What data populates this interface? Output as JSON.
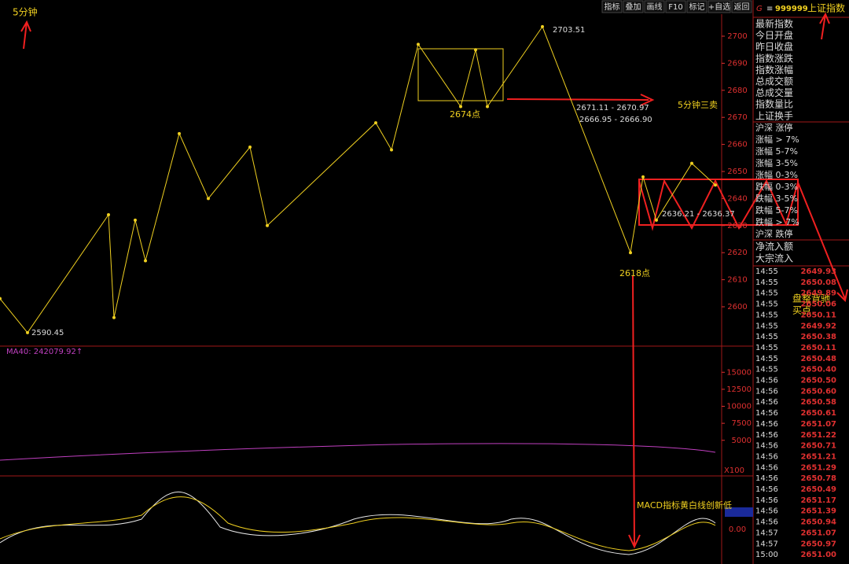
{
  "toolbar": [
    "指标",
    "叠加",
    "画线",
    "F10",
    "标记",
    "+自选",
    "返回"
  ],
  "header": {
    "code": "999999",
    "name": "上证指数",
    "menu": "G",
    "icon": "≡"
  },
  "price_axis": {
    "ylim": [
      2585,
      2713
    ],
    "yticks": [
      2600,
      2610,
      2620,
      2630,
      2640,
      2650,
      2660,
      2670,
      2680,
      2690,
      2700
    ]
  },
  "zigzag": {
    "x": [
      0,
      35,
      138,
      145,
      172,
      185,
      228,
      265,
      318,
      340,
      478,
      498,
      532,
      586,
      605,
      620,
      690,
      802,
      818,
      835,
      880,
      910
    ],
    "values": [
      2603,
      2590.45,
      2634,
      2596,
      2632,
      2617,
      2664,
      2640,
      2659,
      2630,
      2668,
      2658,
      2697,
      2674,
      2695,
      2674,
      2703.51,
      2620,
      2648,
      2632,
      2653,
      2645
    ]
  },
  "annotations": {
    "period": "5分钟",
    "high": "2703.51",
    "low": "2590.45",
    "p2674": "2674点",
    "p2618": "2618点",
    "sell": "5分钟三卖",
    "range1": "2671.11 - 2670.97",
    "range2": "2666.95 - 2666.90",
    "range3": "2636.21 - 2636.37",
    "macd_note": "MACD指标黄白线创新低",
    "buy1": "盘整背驰",
    "buy2": "买点"
  },
  "volume": {
    "ma": "MA40: 242079.92↑",
    "unit": "X100",
    "ylim": [
      0,
      18500
    ],
    "yticks": [
      5000,
      7500,
      10000,
      12500,
      15000
    ]
  },
  "macd": {
    "zero": "0.00"
  },
  "side_labels": [
    "最新指数",
    "今日开盘",
    "昨日收盘",
    "指数涨跌",
    "指数涨幅",
    "总成交额",
    "总成交量",
    "指数量比",
    "上证换手"
  ],
  "breadth_labels": [
    "沪深 涨停",
    "涨幅 > 7%",
    "涨幅 5-7%",
    "涨幅 3-5%",
    "涨幅 0-3%",
    "跌幅 0-3%",
    "跌幅 3-5%",
    "跌幅 5-7%",
    "跌幅 > 7%",
    "沪深 跌停"
  ],
  "flow_labels": [
    "净流入额",
    "大宗流入"
  ],
  "ticks_list": {
    "times": [
      "14:55",
      "14:55",
      "14:55",
      "14:55",
      "14:55",
      "14:55",
      "14:55",
      "14:55",
      "14:55",
      "14:55",
      "14:56",
      "14:56",
      "14:56",
      "14:56",
      "14:56",
      "14:56",
      "14:56",
      "14:56",
      "14:56",
      "14:56",
      "14:56",
      "14:56",
      "14:56",
      "14:56",
      "14:57",
      "14:57",
      "15:00"
    ],
    "prices": [
      "2649.93",
      "2650.08",
      "2649.89",
      "2650.06",
      "2650.11",
      "2649.92",
      "2650.38",
      "2650.11",
      "2650.48",
      "2650.40",
      "2650.50",
      "2650.60",
      "2650.58",
      "2650.61",
      "2651.07",
      "2651.22",
      "2650.71",
      "2651.21",
      "2651.29",
      "2650.78",
      "2650.49",
      "2651.17",
      "2651.39",
      "2650.94",
      "2651.07",
      "2650.97",
      "2651.00"
    ]
  }
}
